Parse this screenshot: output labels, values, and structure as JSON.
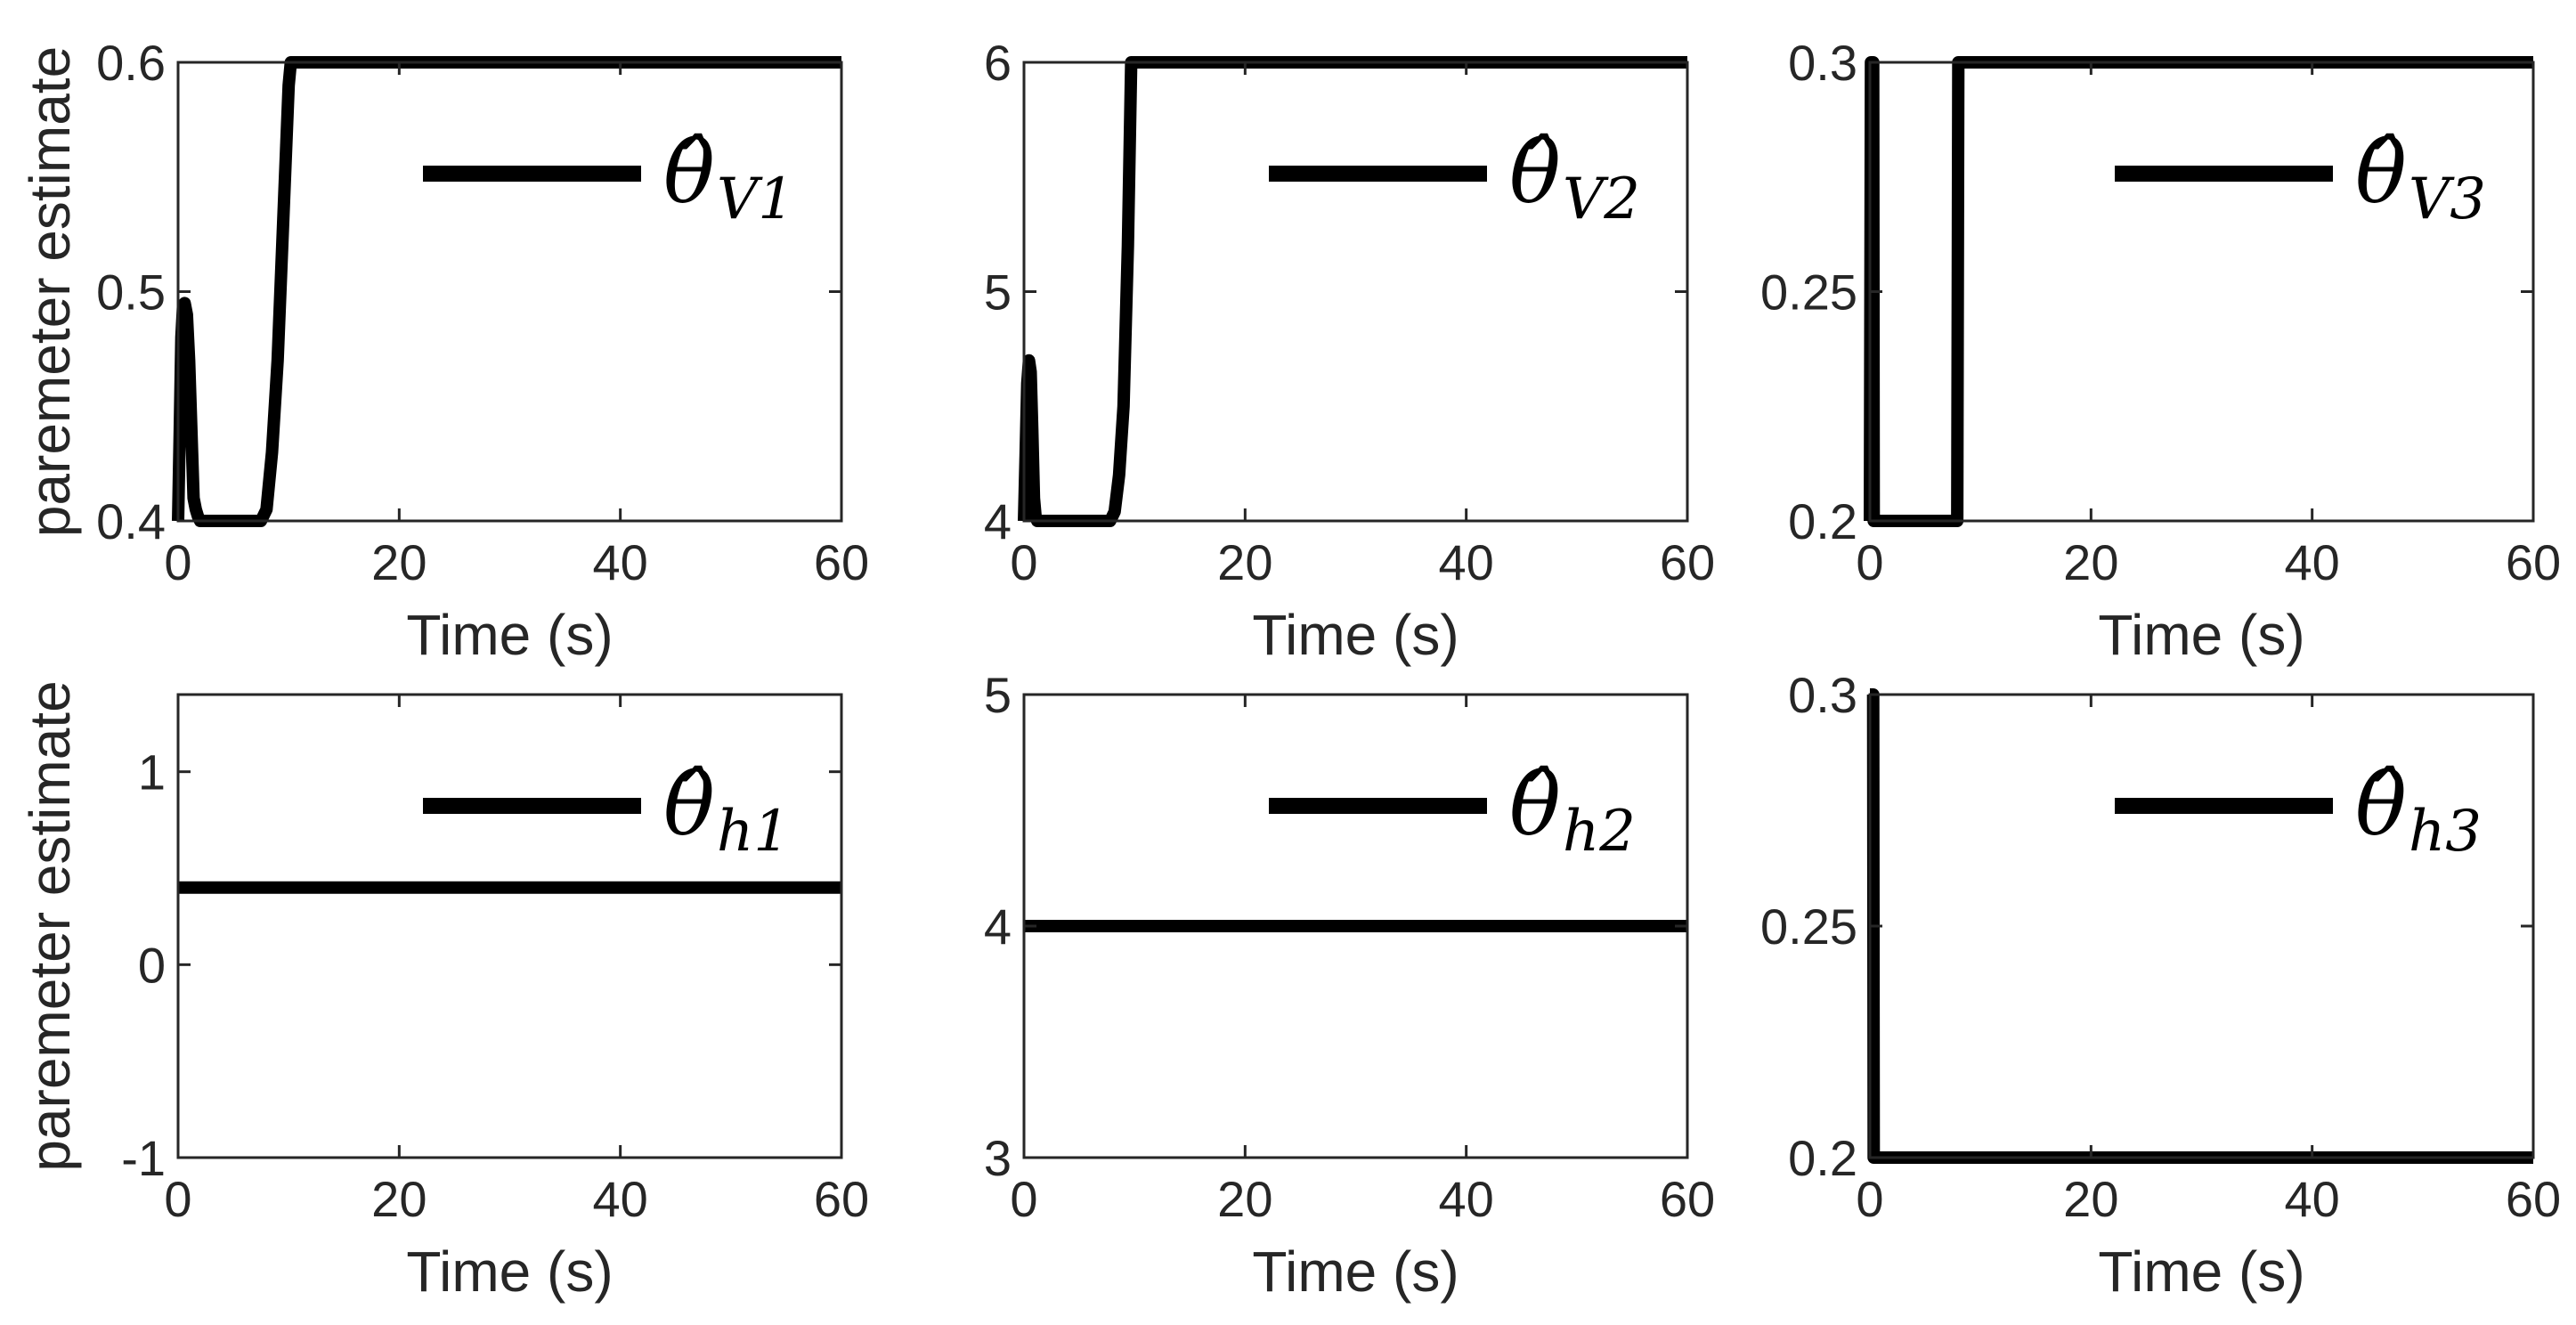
{
  "chart_data": [
    {
      "type": "line",
      "xlabel": "Time (s)",
      "ylabel": "paremeter estimate",
      "xlim": [
        0,
        60
      ],
      "ylim": [
        0.4,
        0.6
      ],
      "xticks": [
        "0",
        "20",
        "40",
        "60"
      ],
      "yticks": [
        "0.4",
        "0.5",
        "0.6"
      ],
      "yticks_values": [
        0.4,
        0.5,
        0.6
      ],
      "legend": {
        "symbol": "θ̂",
        "subscript": "V1",
        "placement": "top-right"
      },
      "series": [
        {
          "x": [
            0,
            0.15,
            0.3,
            0.45,
            0.6,
            0.8,
            1.0,
            1.2,
            1.4,
            1.6,
            1.8,
            2.0,
            2.3,
            7.5,
            8.0,
            8.5,
            9.0,
            9.5,
            10.0,
            10.2,
            60
          ],
          "y": [
            0.4,
            0.44,
            0.48,
            0.494,
            0.495,
            0.49,
            0.47,
            0.44,
            0.41,
            0.405,
            0.402,
            0.4,
            0.4,
            0.4,
            0.405,
            0.43,
            0.47,
            0.53,
            0.59,
            0.6,
            0.6
          ]
        }
      ]
    },
    {
      "type": "line",
      "xlabel": "Time (s)",
      "ylabel": "",
      "xlim": [
        0,
        60
      ],
      "ylim": [
        4,
        6
      ],
      "xticks": [
        "0",
        "20",
        "40",
        "60"
      ],
      "yticks": [
        "4",
        "5",
        "6"
      ],
      "yticks_values": [
        4,
        5,
        6
      ],
      "legend": {
        "symbol": "θ̂",
        "subscript": "V2",
        "placement": "top-right"
      },
      "series": [
        {
          "x": [
            0,
            0.15,
            0.3,
            0.45,
            0.6,
            0.75,
            0.9,
            1.05,
            1.2,
            1.5,
            7.8,
            8.2,
            8.6,
            9.0,
            9.4,
            9.7,
            60
          ],
          "y": [
            4,
            4.3,
            4.6,
            4.7,
            4.65,
            4.4,
            4.1,
            4.02,
            4,
            4,
            4,
            4.04,
            4.2,
            4.5,
            5.2,
            6,
            6
          ]
        }
      ]
    },
    {
      "type": "line",
      "xlabel": "Time (s)",
      "ylabel": "",
      "xlim": [
        0,
        60
      ],
      "ylim": [
        0.2,
        0.3
      ],
      "xticks": [
        "0",
        "20",
        "40",
        "60"
      ],
      "yticks": [
        "0.2",
        "0.25",
        "0.3"
      ],
      "yticks_values": [
        0.2,
        0.25,
        0.3
      ],
      "legend": {
        "symbol": "θ̂",
        "subscript": "V3",
        "placement": "top-right"
      },
      "series": [
        {
          "x": [
            0,
            0.1,
            0.3,
            0.35,
            7.9,
            8.0,
            60
          ],
          "y": [
            0.2,
            0.3,
            0.3,
            0.2,
            0.2,
            0.3,
            0.3
          ]
        }
      ]
    },
    {
      "type": "line",
      "xlabel": "Time (s)",
      "ylabel": "paremeter estimate",
      "xlim": [
        0,
        60
      ],
      "ylim": [
        -1,
        1.4
      ],
      "xticks": [
        "0",
        "20",
        "40",
        "60"
      ],
      "yticks": [
        "-1",
        "0",
        "1"
      ],
      "yticks_values": [
        -1,
        0,
        1
      ],
      "legend": {
        "symbol": "θ̂",
        "subscript": "h1",
        "placement": "top-right"
      },
      "series": [
        {
          "x": [
            0,
            60
          ],
          "y": [
            0.4,
            0.4
          ]
        }
      ]
    },
    {
      "type": "line",
      "xlabel": "Time (s)",
      "ylabel": "",
      "xlim": [
        0,
        60
      ],
      "ylim": [
        3,
        5
      ],
      "xticks": [
        "0",
        "20",
        "40",
        "60"
      ],
      "yticks": [
        "3",
        "4",
        "5"
      ],
      "yticks_values": [
        3,
        4,
        5
      ],
      "legend": {
        "symbol": "θ̂",
        "subscript": "h2",
        "placement": "top-right"
      },
      "series": [
        {
          "x": [
            0,
            60
          ],
          "y": [
            4,
            4
          ]
        }
      ]
    },
    {
      "type": "line",
      "xlabel": "Time (s)",
      "ylabel": "",
      "xlim": [
        0,
        60
      ],
      "ylim": [
        0.2,
        0.3
      ],
      "xticks": [
        "0",
        "20",
        "40",
        "60"
      ],
      "yticks": [
        "0.2",
        "0.25",
        "0.3"
      ],
      "yticks_values": [
        0.2,
        0.25,
        0.3
      ],
      "legend": {
        "symbol": "θ̂",
        "subscript": "h3",
        "placement": "top-right"
      },
      "series": [
        {
          "x": [
            0,
            0.3,
            0.35,
            60
          ],
          "y": [
            0.3,
            0.3,
            0.2,
            0.2
          ]
        }
      ]
    }
  ]
}
